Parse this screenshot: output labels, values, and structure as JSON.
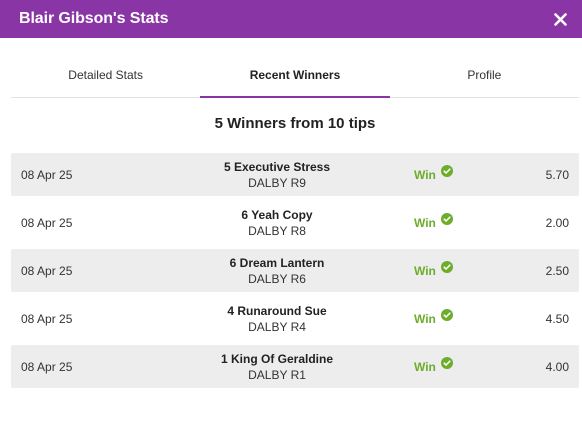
{
  "header": {
    "title": "Blair Gibson's Stats"
  },
  "tabs": [
    {
      "label": "Detailed Stats",
      "active": false
    },
    {
      "label": "Recent Winners",
      "active": true
    },
    {
      "label": "Profile",
      "active": false
    }
  ],
  "summary": "5 Winners from 10 tips",
  "colors": {
    "accent": "#8a35a6",
    "win": "#6cad2a",
    "row_shade": "#ededed"
  },
  "winners": [
    {
      "date": "08 Apr 25",
      "runner": "5 Executive Stress",
      "venue": "DALBY R9",
      "result": "Win",
      "odds": "5.70"
    },
    {
      "date": "08 Apr 25",
      "runner": "6 Yeah Copy",
      "venue": "DALBY R8",
      "result": "Win",
      "odds": "2.00"
    },
    {
      "date": "08 Apr 25",
      "runner": "6 Dream Lantern",
      "venue": "DALBY R6",
      "result": "Win",
      "odds": "2.50"
    },
    {
      "date": "08 Apr 25",
      "runner": "4 Runaround Sue",
      "venue": "DALBY R4",
      "result": "Win",
      "odds": "4.50"
    },
    {
      "date": "08 Apr 25",
      "runner": "1 King Of Geraldine",
      "venue": "DALBY R1",
      "result": "Win",
      "odds": "4.00"
    }
  ]
}
